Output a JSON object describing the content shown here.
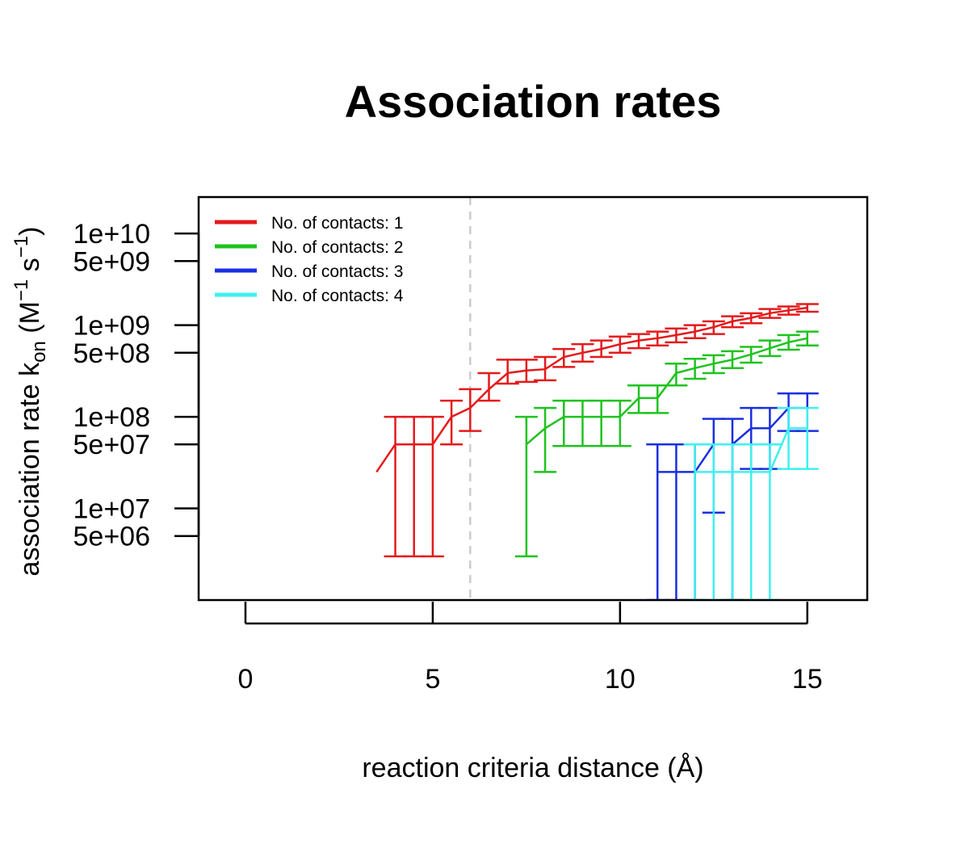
{
  "chart_data": {
    "type": "line",
    "title": "Association rates",
    "xlabel": "reaction criteria distance (Å)",
    "ylabel": {
      "main": "association rate k",
      "k_subscript": "on",
      "unit_open": " (M",
      "m_exp": "−1",
      "s": " s",
      "s_exp": "−1",
      "unit_close": ")"
    },
    "y_scale": "log10",
    "xlim": [
      -1.25,
      16.6
    ],
    "ylim": [
      1000000,
      25000000000
    ],
    "x_ticks": [
      0,
      5,
      10,
      15
    ],
    "x_tick_labels": [
      "0",
      "5",
      "10",
      "15"
    ],
    "y_ticks": [
      5000000,
      10000000,
      50000000,
      100000000,
      500000000,
      1000000000,
      5000000000,
      10000000000
    ],
    "y_tick_labels": [
      "5e+06",
      "1e+07",
      "5e+07",
      "1e+08",
      "5e+08",
      "1e+09",
      "5e+09",
      "1e+10"
    ],
    "reference_line": {
      "x": 6,
      "style": "dashed",
      "color": "#cccccc"
    },
    "grid": false,
    "legend_position": "top-left",
    "series": [
      {
        "name": "No. of contacts: 1",
        "color": "#e41a1c",
        "points": [
          {
            "x": 3.5,
            "y": 25000000
          },
          {
            "x": 4.0,
            "y": 50000000,
            "lo": 3000000,
            "hi": 100000000
          },
          {
            "x": 4.5,
            "y": 50000000,
            "lo": 3000000,
            "hi": 100000000
          },
          {
            "x": 5.0,
            "y": 50000000,
            "lo": 3000000,
            "hi": 100000000
          },
          {
            "x": 5.5,
            "y": 100000000,
            "lo": 50000000,
            "hi": 150000000
          },
          {
            "x": 6.0,
            "y": 125000000,
            "lo": 70000000,
            "hi": 200000000
          },
          {
            "x": 6.5,
            "y": 200000000,
            "lo": 150000000,
            "hi": 300000000
          },
          {
            "x": 7.0,
            "y": 300000000,
            "lo": 230000000,
            "hi": 420000000
          },
          {
            "x": 7.5,
            "y": 320000000,
            "lo": 240000000,
            "hi": 420000000
          },
          {
            "x": 8.0,
            "y": 330000000,
            "lo": 250000000,
            "hi": 450000000
          },
          {
            "x": 8.5,
            "y": 450000000,
            "lo": 350000000,
            "hi": 550000000
          },
          {
            "x": 9.0,
            "y": 500000000,
            "lo": 400000000,
            "hi": 620000000
          },
          {
            "x": 9.5,
            "y": 550000000,
            "lo": 450000000,
            "hi": 680000000
          },
          {
            "x": 10.0,
            "y": 620000000,
            "lo": 500000000,
            "hi": 750000000
          },
          {
            "x": 10.5,
            "y": 680000000,
            "lo": 560000000,
            "hi": 800000000
          },
          {
            "x": 11.0,
            "y": 720000000,
            "lo": 600000000,
            "hi": 850000000
          },
          {
            "x": 11.5,
            "y": 780000000,
            "lo": 650000000,
            "hi": 920000000
          },
          {
            "x": 12.0,
            "y": 850000000,
            "lo": 720000000,
            "hi": 1000000000
          },
          {
            "x": 12.5,
            "y": 950000000,
            "lo": 800000000,
            "hi": 1100000000
          },
          {
            "x": 13.0,
            "y": 1100000000,
            "lo": 950000000,
            "hi": 1250000000
          },
          {
            "x": 13.5,
            "y": 1200000000,
            "lo": 1050000000,
            "hi": 1350000000
          },
          {
            "x": 14.0,
            "y": 1350000000,
            "lo": 1200000000,
            "hi": 1500000000
          },
          {
            "x": 14.5,
            "y": 1450000000,
            "lo": 1300000000,
            "hi": 1600000000
          },
          {
            "x": 15.0,
            "y": 1550000000,
            "lo": 1400000000,
            "hi": 1700000000
          }
        ]
      },
      {
        "name": "No. of contacts: 2",
        "color": "#1ec31e",
        "points": [
          {
            "x": 7.5,
            "y": 50000000,
            "lo": 3000000,
            "hi": 100000000
          },
          {
            "x": 8.0,
            "y": 75000000,
            "lo": 25000000,
            "hi": 125000000
          },
          {
            "x": 8.5,
            "y": 100000000,
            "lo": 48000000,
            "hi": 150000000
          },
          {
            "x": 9.0,
            "y": 100000000,
            "lo": 48000000,
            "hi": 150000000
          },
          {
            "x": 9.5,
            "y": 100000000,
            "lo": 48000000,
            "hi": 150000000
          },
          {
            "x": 10.0,
            "y": 100000000,
            "lo": 48000000,
            "hi": 150000000
          },
          {
            "x": 10.5,
            "y": 160000000,
            "lo": 110000000,
            "hi": 220000000
          },
          {
            "x": 11.0,
            "y": 160000000,
            "lo": 110000000,
            "hi": 220000000
          },
          {
            "x": 11.5,
            "y": 300000000,
            "lo": 220000000,
            "hi": 380000000
          },
          {
            "x": 12.0,
            "y": 340000000,
            "lo": 260000000,
            "hi": 430000000
          },
          {
            "x": 12.5,
            "y": 380000000,
            "lo": 300000000,
            "hi": 470000000
          },
          {
            "x": 13.0,
            "y": 420000000,
            "lo": 340000000,
            "hi": 520000000
          },
          {
            "x": 13.5,
            "y": 480000000,
            "lo": 390000000,
            "hi": 580000000
          },
          {
            "x": 14.0,
            "y": 560000000,
            "lo": 460000000,
            "hi": 680000000
          },
          {
            "x": 14.5,
            "y": 650000000,
            "lo": 540000000,
            "hi": 780000000
          },
          {
            "x": 15.0,
            "y": 720000000,
            "lo": 600000000,
            "hi": 850000000
          }
        ]
      },
      {
        "name": "No. of contacts: 3",
        "color": "#1a2fe0",
        "points": [
          {
            "x": 11.0,
            "y": 25000000,
            "lo": 1000000,
            "hi": 50000000
          },
          {
            "x": 11.5,
            "y": 25000000,
            "lo": 1000000,
            "hi": 50000000
          },
          {
            "x": 12.0,
            "y": 25000000,
            "lo": 1000000,
            "hi": 50000000
          },
          {
            "x": 12.5,
            "y": 50000000,
            "lo": 9000000,
            "hi": 95000000
          },
          {
            "x": 13.0,
            "y": 50000000,
            "lo": 1000000,
            "hi": 95000000
          },
          {
            "x": 13.5,
            "y": 75000000,
            "lo": 27000000,
            "hi": 125000000
          },
          {
            "x": 14.0,
            "y": 75000000,
            "lo": 27000000,
            "hi": 125000000
          },
          {
            "x": 14.5,
            "y": 125000000,
            "lo": 70000000,
            "hi": 180000000
          },
          {
            "x": 15.0,
            "y": 125000000,
            "lo": 70000000,
            "hi": 180000000
          }
        ]
      },
      {
        "name": "No. of contacts: 4",
        "color": "#3ef0f0",
        "points": [
          {
            "x": 12.0,
            "y": 25000000,
            "lo": 1000000,
            "hi": 50000000
          },
          {
            "x": 12.5,
            "y": 25000000,
            "lo": 1000000,
            "hi": 50000000
          },
          {
            "x": 13.0,
            "y": 25000000,
            "lo": 1000000,
            "hi": 50000000
          },
          {
            "x": 13.5,
            "y": 25000000,
            "lo": 1000000,
            "hi": 50000000
          },
          {
            "x": 14.0,
            "y": 25000000,
            "lo": 1000000,
            "hi": 50000000
          },
          {
            "x": 14.5,
            "y": 75000000,
            "lo": 27000000,
            "hi": 125000000
          },
          {
            "x": 15.0,
            "y": 75000000,
            "lo": 27000000,
            "hi": 125000000
          }
        ]
      }
    ]
  }
}
